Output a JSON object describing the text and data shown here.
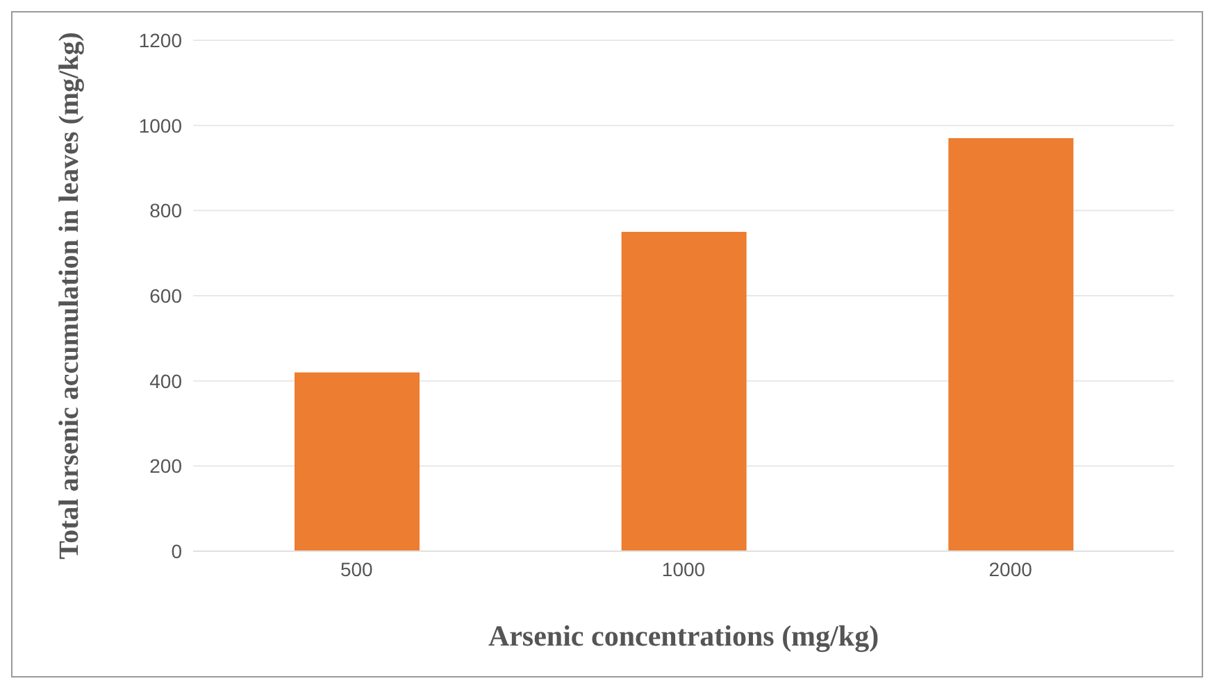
{
  "chart_data": {
    "type": "bar",
    "xlabel": "Arsenic concentrations (mg/kg)",
    "ylabel": "Total arsenic accumulation in leaves (mg/kg)",
    "categories": [
      "500",
      "1000",
      "2000"
    ],
    "values": [
      420,
      750,
      970
    ],
    "color": "#ed7d31",
    "ylim": [
      0,
      1200
    ],
    "yticks": [
      0,
      200,
      400,
      600,
      800,
      1000,
      1200
    ],
    "grid": "y"
  }
}
